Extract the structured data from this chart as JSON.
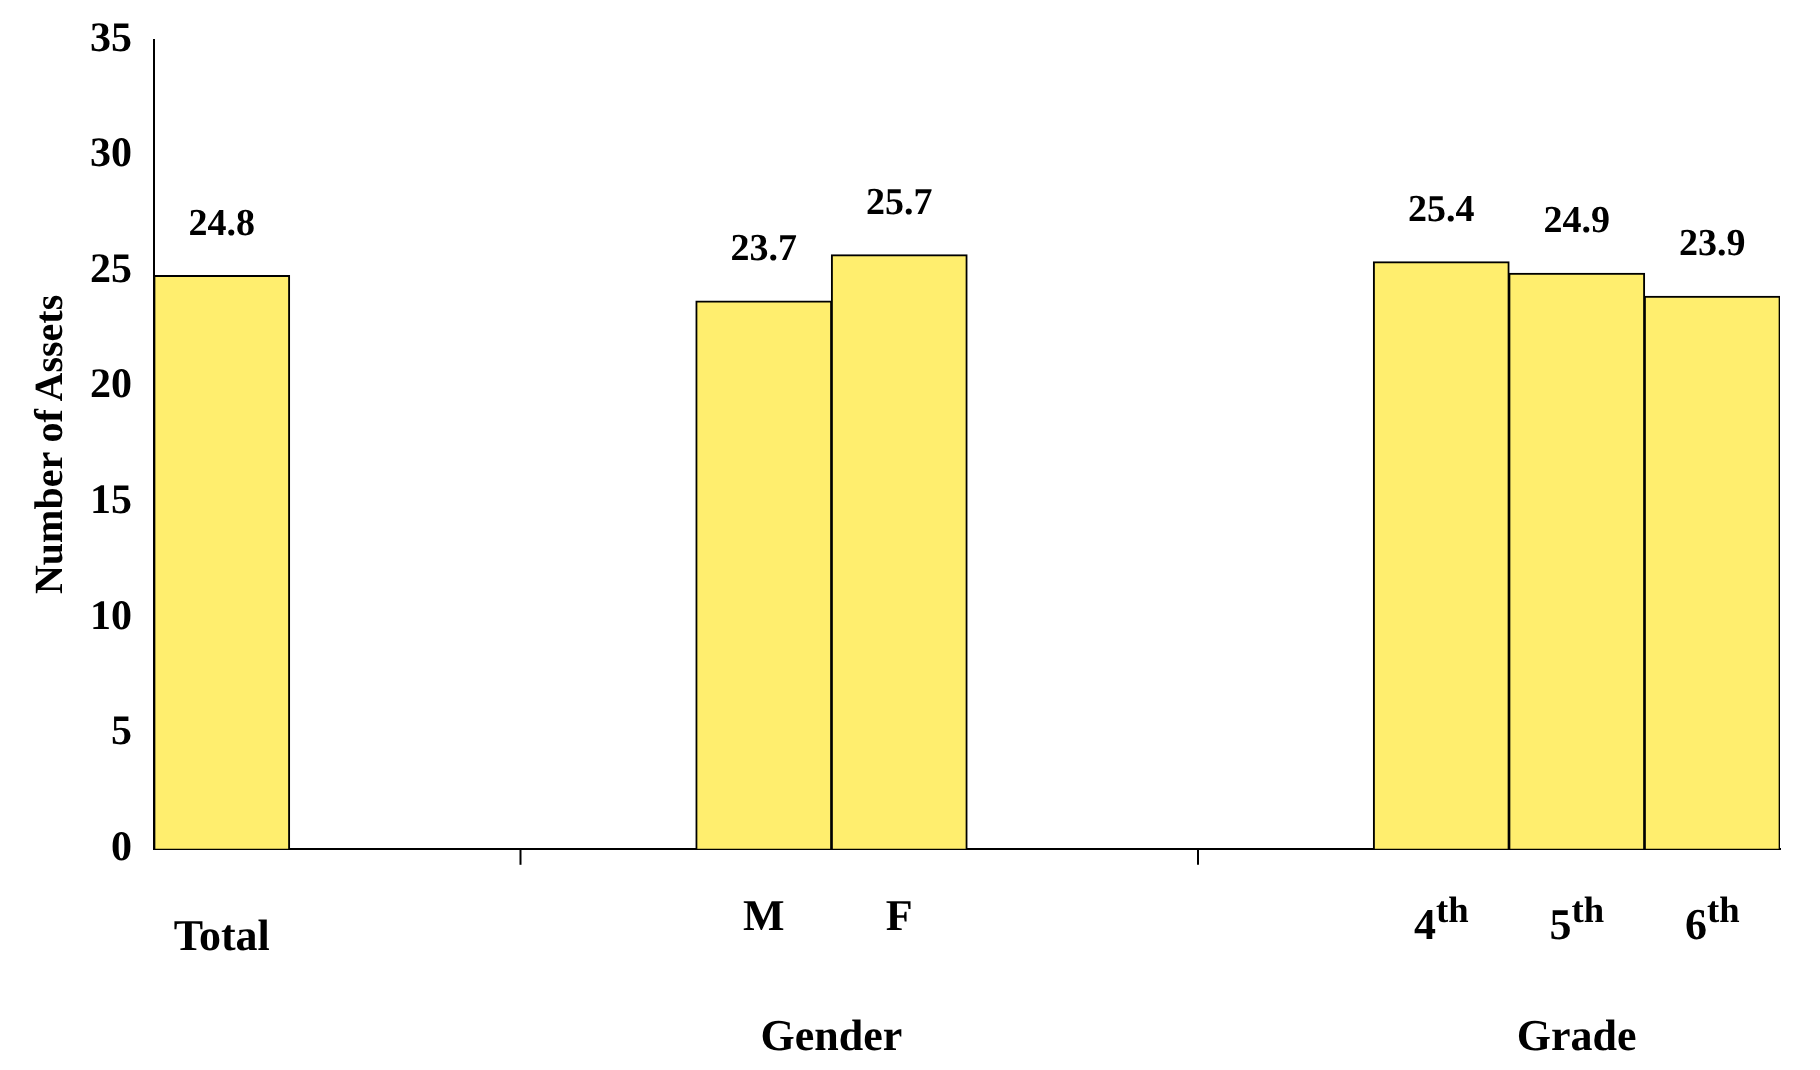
{
  "chart_data": {
    "type": "bar",
    "ylabel": "Number of Assets",
    "categories": [
      "Total",
      null,
      null,
      null,
      "M",
      "F",
      null,
      null,
      null,
      "4$^{th}$",
      "5$^{th}$",
      "6$^{th}$"
    ],
    "values": [
      24.8,
      null,
      null,
      null,
      23.7,
      25.7,
      null,
      null,
      null,
      25.4,
      24.9,
      23.9
    ],
    "color": "#ffee6e",
    "ylim": [
      0,
      35
    ],
    "yticks": [
      0,
      5,
      10,
      15,
      20,
      25,
      30,
      35
    ],
    "grid": false,
    "legend": false,
    "data_labels": true,
    "annotations": [
      "Gender",
      "Grade"
    ]
  }
}
